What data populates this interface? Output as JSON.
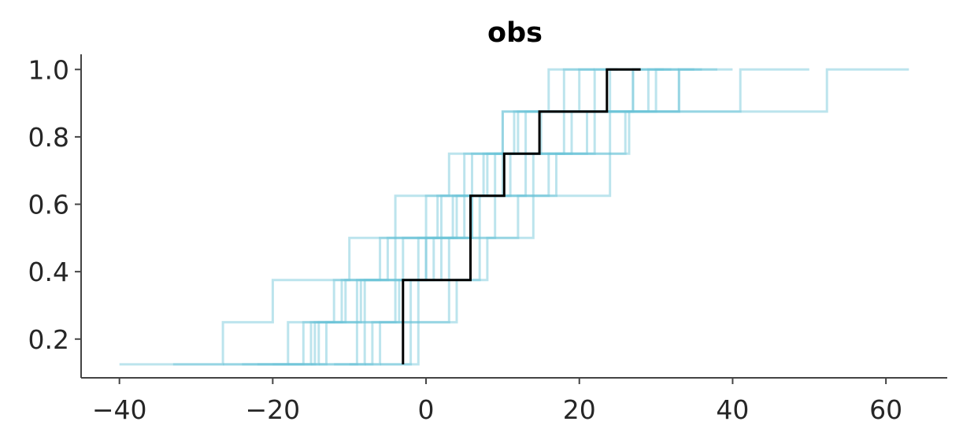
{
  "chart_data": {
    "type": "line",
    "title": "obs",
    "xlabel": "",
    "ylabel": "",
    "xlim": [
      -45,
      68
    ],
    "ylim": [
      0.085,
      1.045
    ],
    "x_ticks": [
      -40,
      -20,
      0,
      20,
      40,
      60
    ],
    "x_tick_labels": [
      "−40",
      "−20",
      "0",
      "20",
      "40",
      "60"
    ],
    "y_ticks": [
      0.2,
      0.4,
      0.6,
      0.8,
      1.0
    ],
    "y_tick_labels": [
      "0.2",
      "0.4",
      "0.6",
      "0.8",
      "1.0"
    ],
    "grid": false,
    "legend": "none",
    "colors": {
      "posterior_predictive": "#6ac3d6",
      "observed": "#000000",
      "axis": "#444444"
    },
    "series": [
      {
        "role": "observed",
        "x": [
          -3.0,
          -3.0,
          5.8,
          10.2,
          14.8,
          23.6,
          28.0
        ],
        "y": [
          0.125,
          0.375,
          0.625,
          0.75,
          0.875,
          1.0,
          1.0
        ]
      },
      {
        "role": "posterior_predictive",
        "x": [
          -40.0,
          -26.5,
          -20.0,
          -10.0,
          -4.0,
          3.0,
          10.0,
          20.0,
          25.0
        ],
        "y": [
          0.125,
          0.25,
          0.375,
          0.5,
          0.625,
          0.75,
          0.875,
          1.0,
          1.0
        ]
      },
      {
        "role": "posterior_predictive",
        "x": [
          -33.0,
          -14.0,
          -8.0,
          0.0,
          6.0,
          11.0,
          19.0,
          41.0,
          50.0
        ],
        "y": [
          0.125,
          0.25,
          0.375,
          0.5,
          0.625,
          0.75,
          0.875,
          1.0,
          1.0
        ]
      },
      {
        "role": "posterior_predictive",
        "x": [
          -26.5,
          -18.0,
          -10.5,
          -4.0,
          1.5,
          6.0,
          10.0,
          52.3,
          63.0
        ],
        "y": [
          0.125,
          0.25,
          0.375,
          0.5,
          0.625,
          0.75,
          0.875,
          1.0,
          1.0
        ]
      },
      {
        "role": "posterior_predictive",
        "x": [
          -15.0,
          -8.0,
          -2.0,
          3.0,
          7.0,
          13.0,
          24.0,
          27.0,
          32.0
        ],
        "y": [
          0.125,
          0.25,
          0.375,
          0.5,
          0.625,
          0.75,
          0.875,
          1.0,
          1.0
        ]
      },
      {
        "role": "posterior_predictive",
        "x": [
          -20.0,
          -15.0,
          -11.0,
          -6.0,
          0.0,
          5.0,
          12.0,
          33.0,
          38.0
        ],
        "y": [
          0.125,
          0.25,
          0.375,
          0.5,
          0.625,
          0.75,
          0.875,
          1.0,
          1.0
        ]
      },
      {
        "role": "posterior_predictive",
        "x": [
          -10.0,
          -6.0,
          -1.0,
          2.0,
          9.0,
          16.0,
          21.0,
          29.0,
          33.0
        ],
        "y": [
          0.125,
          0.25,
          0.375,
          0.5,
          0.625,
          0.75,
          0.875,
          1.0,
          1.0
        ]
      },
      {
        "role": "posterior_predictive",
        "x": [
          -18.0,
          -13.0,
          -9.0,
          -3.0,
          4.0,
          10.0,
          15.0,
          18.0,
          25.0
        ],
        "y": [
          0.125,
          0.25,
          0.375,
          0.5,
          0.625,
          0.75,
          0.875,
          1.0,
          1.0
        ]
      },
      {
        "role": "posterior_predictive",
        "x": [
          -12.0,
          -7.0,
          -3.5,
          1.0,
          5.0,
          8.0,
          13.0,
          22.0,
          28.0
        ],
        "y": [
          0.125,
          0.25,
          0.375,
          0.5,
          0.625,
          0.75,
          0.875,
          1.0,
          1.0
        ]
      },
      {
        "role": "posterior_predictive",
        "x": [
          -22.0,
          -16.0,
          -12.0,
          -5.0,
          2.0,
          9.0,
          18.0,
          24.0,
          31.0
        ],
        "y": [
          0.125,
          0.25,
          0.375,
          0.5,
          0.625,
          0.75,
          0.875,
          1.0,
          1.0
        ]
      },
      {
        "role": "posterior_predictive",
        "x": [
          -8.0,
          -2.0,
          3.0,
          7.0,
          12.0,
          17.0,
          22.0,
          27.0,
          36.0
        ],
        "y": [
          0.125,
          0.25,
          0.375,
          0.5,
          0.625,
          0.75,
          0.875,
          1.0,
          1.0
        ]
      },
      {
        "role": "posterior_predictive",
        "x": [
          -14.0,
          -9.0,
          -4.0,
          0.0,
          6.0,
          14.0,
          26.5,
          33.0,
          40.0
        ],
        "y": [
          0.125,
          0.25,
          0.375,
          0.5,
          0.625,
          0.75,
          0.875,
          1.0,
          1.0
        ]
      },
      {
        "role": "posterior_predictive",
        "x": [
          -24.0,
          -14.5,
          -8.5,
          -1.0,
          3.5,
          7.5,
          11.5,
          16.0,
          22.0
        ],
        "y": [
          0.125,
          0.25,
          0.375,
          0.5,
          0.625,
          0.75,
          0.875,
          1.0,
          1.0
        ]
      },
      {
        "role": "posterior_predictive",
        "x": [
          -6.0,
          -1.0,
          4.0,
          8.0,
          14.0,
          24.0,
          26.0,
          30.0,
          35.0
        ],
        "y": [
          0.125,
          0.25,
          0.375,
          0.5,
          0.625,
          0.75,
          0.875,
          1.0,
          1.0
        ]
      }
    ]
  }
}
